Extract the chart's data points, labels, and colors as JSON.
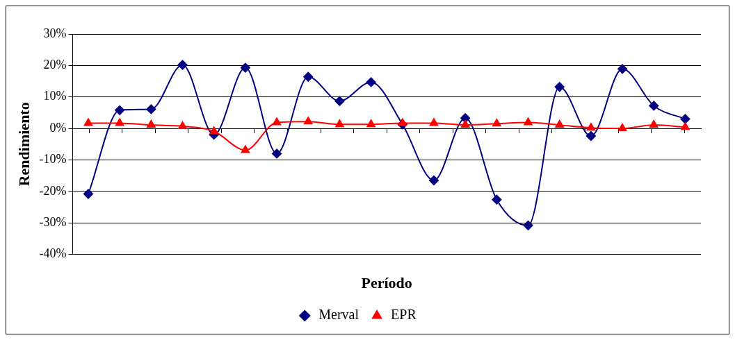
{
  "chart_data": {
    "type": "line",
    "xlabel": "Período",
    "ylabel": "Rendimiento",
    "categories": [
      null,
      null,
      null,
      null,
      null,
      null,
      null,
      null,
      null,
      null,
      null,
      null,
      null,
      null,
      null,
      null,
      null,
      null,
      null,
      null
    ],
    "series": [
      {
        "name": "Merval",
        "color": "#000080",
        "marker": "diamond",
        "values": [
          -20.8,
          5.8,
          6.1,
          20.2,
          -2,
          19.3,
          -8,
          16.4,
          8.7,
          14.7,
          1.3,
          -16.5,
          3.3,
          -22.6,
          -30.8,
          13.2,
          -2.4,
          18.9,
          7.2,
          3
        ]
      },
      {
        "name": "EPR",
        "color": "#ff0000",
        "marker": "triangle",
        "values": [
          1.7,
          1.7,
          1.1,
          0.7,
          -0.9,
          -6.9,
          1.9,
          2.2,
          1.3,
          1.3,
          1.7,
          1.7,
          1.1,
          1.5,
          1.9,
          1.1,
          0.2,
          0,
          1.1,
          0.4
        ]
      }
    ],
    "ylim": [
      -40,
      30
    ],
    "yticks": [
      {
        "value": -40,
        "label": "-40%"
      },
      {
        "value": -30,
        "label": "-30%"
      },
      {
        "value": -20,
        "label": "-20%"
      },
      {
        "value": -10,
        "label": "-10%"
      },
      {
        "value": 0,
        "label": "0%"
      },
      {
        "value": 10,
        "label": "10%"
      },
      {
        "value": 20,
        "label": "20%"
      },
      {
        "value": 30,
        "label": "30%"
      }
    ],
    "grid": "y",
    "legend": "bottom"
  }
}
